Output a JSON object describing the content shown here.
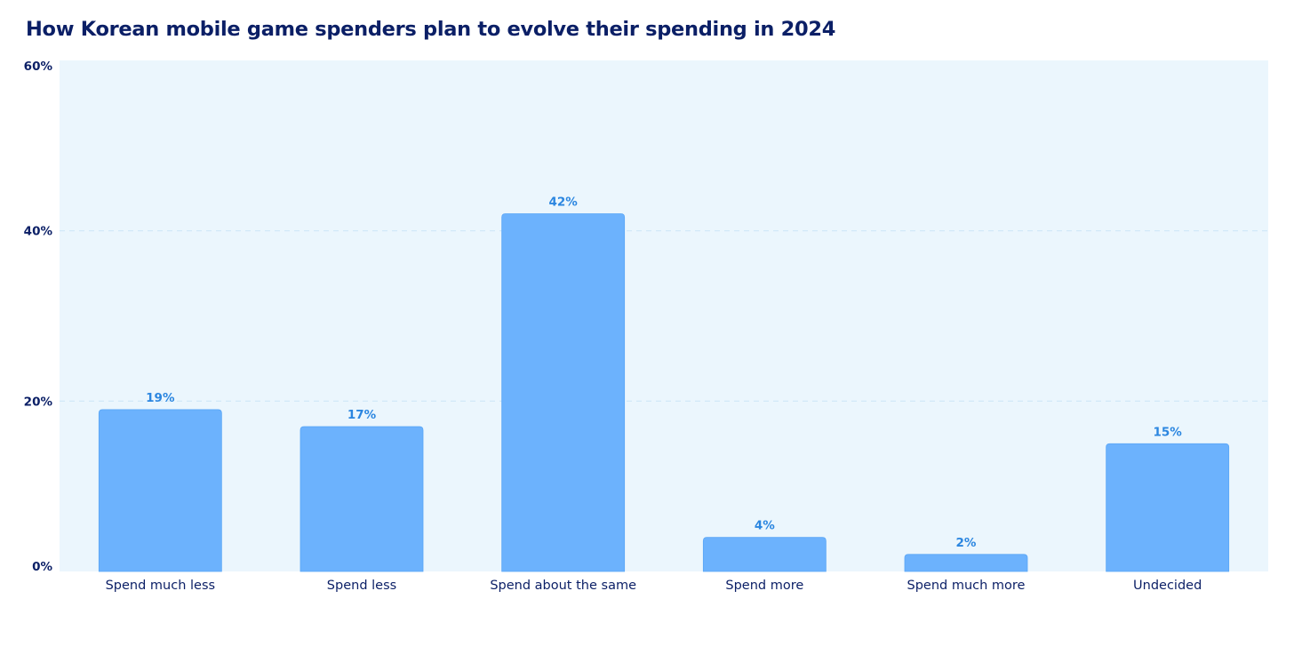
{
  "chart_data": {
    "type": "bar",
    "title": "How Korean mobile game spenders plan to evolve their spending in 2024",
    "xlabel": "",
    "ylabel": "",
    "categories": [
      "Spend much less",
      "Spend less",
      "Spend about the same",
      "Spend more",
      "Spend much more",
      "Undecided"
    ],
    "values": [
      19,
      17,
      42,
      4,
      2,
      15
    ],
    "data_labels": [
      "19%",
      "17%",
      "42%",
      "4%",
      "2%",
      "15%"
    ],
    "ylim": [
      0,
      60
    ],
    "yticks": [
      0,
      20,
      40,
      60
    ],
    "ytick_labels": [
      "0%",
      "20%",
      "40%",
      "60%"
    ],
    "grid": "horizontal dashed",
    "legend": "none",
    "colors": {
      "bar": "#6cb2fd",
      "bar_edge": "#5aa6f6",
      "plot_background": "#ebf6fd",
      "gridline": "#cfe7f8",
      "data_label": "#2b86e0",
      "axis_text": "#0b1f66",
      "title": "#0b1f66"
    }
  }
}
